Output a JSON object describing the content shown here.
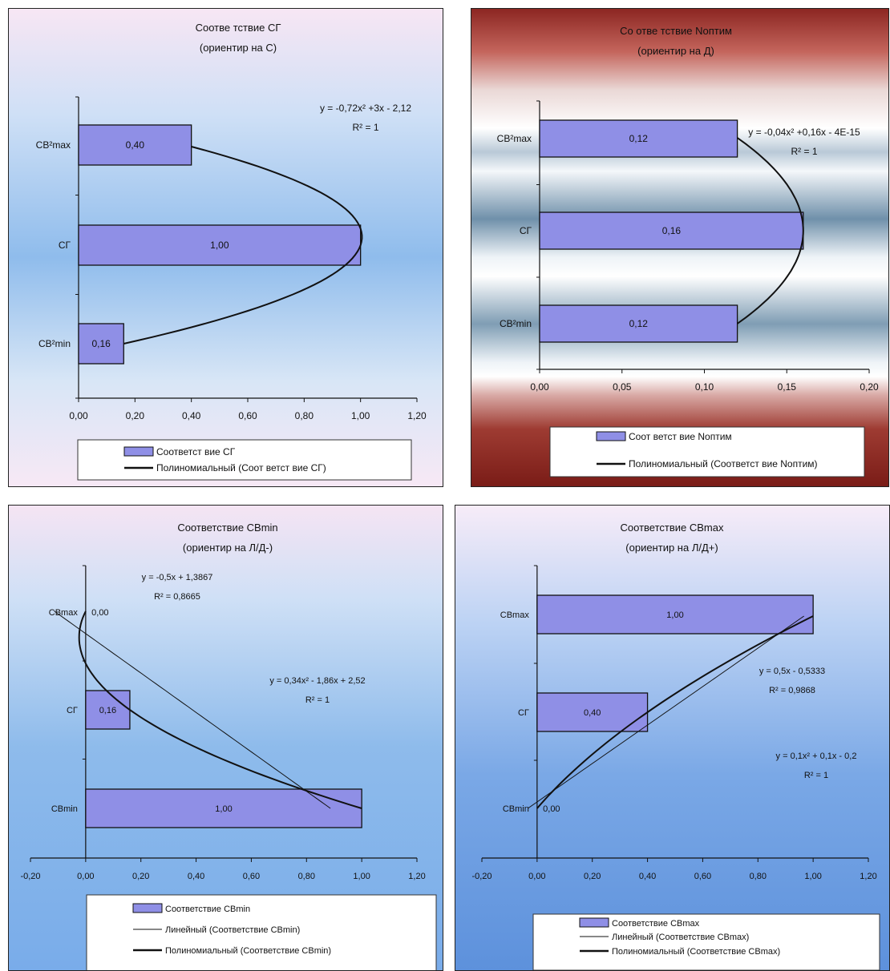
{
  "chart_data": [
    {
      "type": "bar",
      "title": "Соотве тствие СГ",
      "subtitle": "(ориентир на С)",
      "categories": [
        "СВ²min",
        "СГ",
        "СВ²max"
      ],
      "series": [
        {
          "name": "Соответст вие СГ",
          "values": [
            0.16,
            1.0,
            0.4
          ],
          "labels": [
            "0,16",
            "1,00",
            "0,40"
          ]
        }
      ],
      "trendlines": [
        {
          "name": "Полиномиальный (Соот ветст вие СГ)",
          "kind": "polynomial",
          "equation": "y = -0,72x² +3x - 2,12",
          "r2": "R² = 1",
          "coef": [
            -0.72,
            3,
            -2.12
          ]
        }
      ],
      "xlim": [
        0,
        1.2
      ],
      "xticks": [
        "0,00",
        "0,20",
        "0,40",
        "0,60",
        "0,80",
        "1,00",
        "1,20"
      ],
      "tick_values": [
        0,
        0.2,
        0.4,
        0.6,
        0.8,
        1.0,
        1.2
      ],
      "legend_position": "bottom",
      "colors": {
        "bar": "#8f8fe6",
        "bar_edge": "#111111",
        "line": "#111111"
      }
    },
    {
      "type": "bar",
      "title": "Со отве тствие Nоптим",
      "subtitle": "(ориентир на Д)",
      "categories": [
        "СВ²min",
        "СГ",
        "СВ²max"
      ],
      "series": [
        {
          "name": "Соот ветст вие Nоптим",
          "values": [
            0.12,
            0.16,
            0.12
          ],
          "labels": [
            "0,12",
            "0,16",
            "0,12"
          ]
        }
      ],
      "trendlines": [
        {
          "name": "Полиномиальный (Соответст вие Nоптим)",
          "kind": "polynomial",
          "equation": "y = -0,04x² +0,16x - 4E-15",
          "r2": "R² = 1",
          "coef": [
            -0.04,
            0.16,
            0
          ]
        }
      ],
      "xlim": [
        0,
        0.2
      ],
      "xticks": [
        "0,00",
        "0,05",
        "0,10",
        "0,15",
        "0,20"
      ],
      "tick_values": [
        0,
        0.05,
        0.1,
        0.15,
        0.2
      ],
      "legend_position": "bottom",
      "colors": {
        "bar": "#8f8fe6",
        "bar_edge": "#111111",
        "line": "#111111"
      }
    },
    {
      "type": "bar",
      "title": "Соответствие СВmin",
      "subtitle": "(ориентир на Л/Д-)",
      "categories": [
        "СВmin",
        "СГ",
        "СВmax"
      ],
      "series": [
        {
          "name": "Соответствие СВmin",
          "values": [
            1.0,
            0.16,
            0.0
          ],
          "labels": [
            "1,00",
            "0,16",
            "0,00"
          ]
        }
      ],
      "trendlines": [
        {
          "name": "Линейный (Соответствие СВmin)",
          "kind": "linear",
          "equation": "y = -0,5x + 1,3867",
          "r2": "R² = 0,8665",
          "coef": [
            0,
            -0.5,
            1.3867
          ]
        },
        {
          "name": "Полиномиальный (Соответствие СВmin)",
          "kind": "polynomial",
          "equation": "y = 0,34x² - 1,86x + 2,52",
          "r2": "R² = 1",
          "coef": [
            0.34,
            -1.86,
            2.52
          ]
        }
      ],
      "xlim": [
        -0.2,
        1.2
      ],
      "xticks": [
        "-0,20",
        "0,00",
        "0,20",
        "0,40",
        "0,60",
        "0,80",
        "1,00",
        "1,20"
      ],
      "tick_values": [
        -0.2,
        0,
        0.2,
        0.4,
        0.6,
        0.8,
        1.0,
        1.2
      ],
      "legend_position": "bottom",
      "colors": {
        "bar": "#8f8fe6",
        "bar_edge": "#111111",
        "line": "#111111"
      }
    },
    {
      "type": "bar",
      "title": "Соответствие СВmax",
      "subtitle": "(ориентир на Л/Д+)",
      "categories": [
        "СВmin",
        "СГ",
        "СВmax"
      ],
      "series": [
        {
          "name": "Соответствие СВmax",
          "values": [
            0.0,
            0.4,
            1.0
          ],
          "labels": [
            "0,00",
            "0,40",
            "1,00"
          ]
        }
      ],
      "trendlines": [
        {
          "name": "Линейный (Соответствие СВmax)",
          "kind": "linear",
          "equation": "y = 0,5x - 0,5333",
          "r2": "R² = 0,9868",
          "coef": [
            0,
            0.5,
            -0.5333
          ]
        },
        {
          "name": "Полиномиальный (Соответствие СВmax)",
          "kind": "polynomial",
          "equation": "y = 0,1x² + 0,1x - 0,2",
          "r2": "R² = 1",
          "coef": [
            0.1,
            0.1,
            -0.2
          ]
        }
      ],
      "xlim": [
        -0.2,
        1.2
      ],
      "xticks": [
        "-0,20",
        "0,00",
        "0,20",
        "0,40",
        "0,60",
        "0,80",
        "1,00",
        "1,20"
      ],
      "tick_values": [
        -0.2,
        0,
        0.2,
        0.4,
        0.6,
        0.8,
        1.0,
        1.2
      ],
      "legend_position": "bottom",
      "colors": {
        "bar": "#8f8fe6",
        "bar_edge": "#111111",
        "line": "#111111"
      }
    }
  ]
}
